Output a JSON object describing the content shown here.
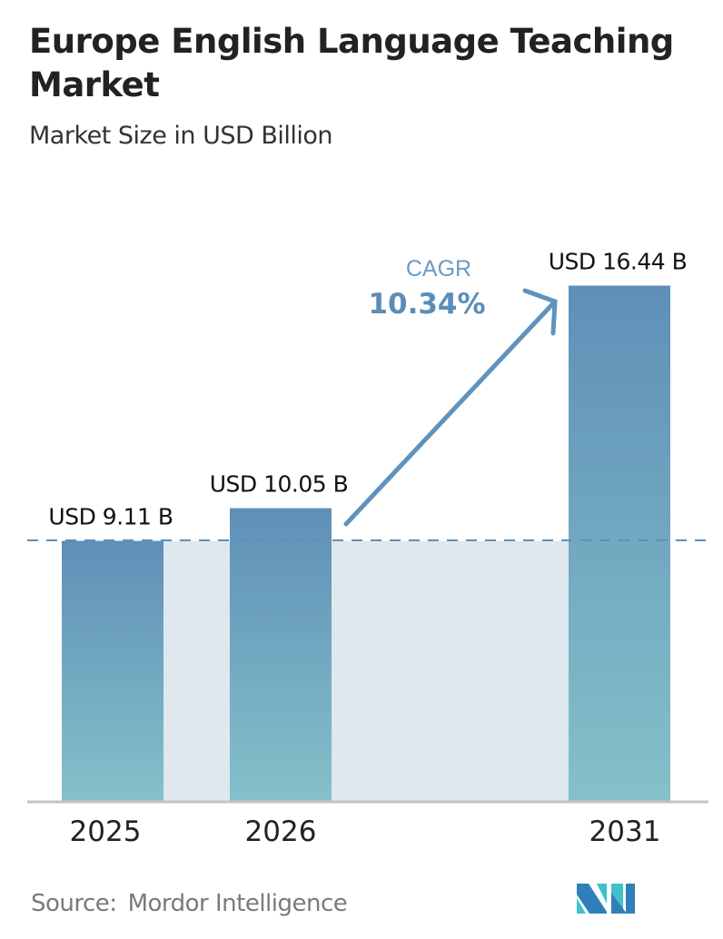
{
  "title": "Europe English Language Teaching Market",
  "subtitle": "Market Size in USD Billion",
  "source": {
    "label": "Source:",
    "name": "Mordor Intelligence"
  },
  "chart_data": {
    "type": "bar",
    "title": "Europe English Language Teaching Market",
    "subtitle": "Market Size in USD Billion",
    "categories": [
      "2025",
      "2026",
      "2031"
    ],
    "values": [
      9.11,
      10.05,
      16.44
    ],
    "data_labels": [
      "USD 9.11 B",
      "USD 10.05 B",
      "USD 16.44 B"
    ],
    "cagr": {
      "label": "CAGR",
      "value": "10.34%"
    },
    "reference_line": "dashed line at 2025 value",
    "grid": false,
    "colors": {
      "bar_top": "#5f8fb8",
      "bar_bottom": "#84c1c9",
      "cagr": "#5b8db8",
      "band": "#dfe7ef"
    }
  }
}
